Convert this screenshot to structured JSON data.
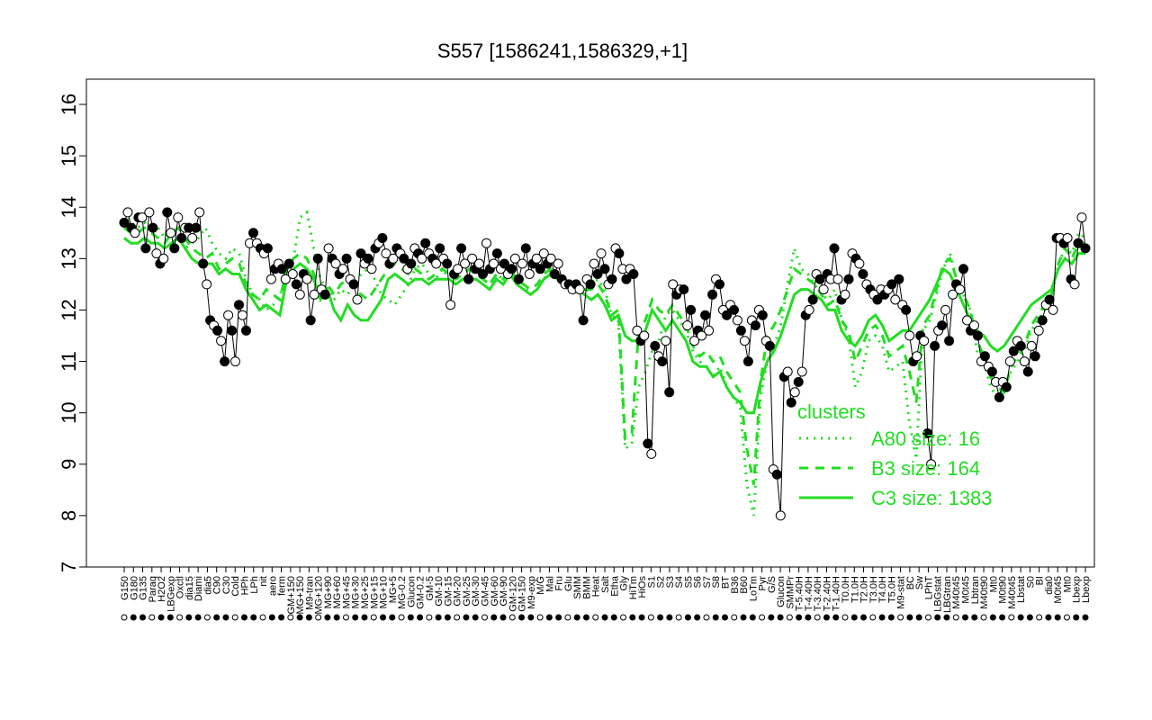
{
  "chart_data": {
    "type": "line",
    "title": "S557 [1586241,1586329,+1]",
    "xlabel": "",
    "ylabel": "",
    "ylim": [
      7,
      16
    ],
    "yticks": [
      7,
      8,
      9,
      10,
      11,
      12,
      13,
      14,
      15,
      16
    ],
    "x_tick_labels": [
      "G150",
      "G180",
      "G135",
      "Paraq",
      "H2O2",
      "LBGexp",
      "Oxctl",
      "dia15",
      "Diami",
      "dia5",
      "C90",
      "C30",
      "Cold",
      "HPh",
      "LPh",
      "nit",
      "aero",
      "ferm",
      "GM+150",
      "MG+150",
      "M9-tran",
      "MG+120",
      "MG+90",
      "MG+60",
      "MG+45",
      "MG+30",
      "MG+25",
      "MG+15",
      "MG+10",
      "MG+5",
      "MG-0.2",
      "Glucon",
      "GM-0.2",
      "GM-5",
      "GM-10",
      "GM-15",
      "GM-20",
      "GM-25",
      "GM-30",
      "GM-45",
      "GM-60",
      "GM-90",
      "GM-120",
      "GM-150",
      "M9-exp",
      "M/G",
      "Mal",
      "Fru",
      "Glu",
      "SMM",
      "BMM",
      "Heat",
      "Salt",
      "Etha",
      "Gly",
      "HiTm",
      "HiOs",
      "S1",
      "S2",
      "S3",
      "S4",
      "S5",
      "S6",
      "S7",
      "S8",
      "BT",
      "B36",
      "B60",
      "LoTm",
      "Pyr",
      "G/S",
      "Glucon",
      "SMMPr",
      "T-5.40H",
      "T-4.40H",
      "T-3.40H",
      "T-2.40H",
      "T-1.40H",
      "T0.0H",
      "T1.0H",
      "T2.0H",
      "T3.0H",
      "T4.0H",
      "T5.0H",
      "M9-stat",
      "BC",
      "Sw",
      "LPhT",
      "LBGstat",
      "LBGtran",
      "M40t45",
      "M0t45",
      "Lbtran",
      "M40t90",
      "Mt0",
      "M0t90",
      "M40t45",
      "Lbstat",
      "S0",
      "BI",
      "dia0",
      "M0t45",
      "Mt0",
      "Lbexp",
      "Lbexp"
    ],
    "legend": {
      "title": "clusters",
      "placement": "right",
      "entries": [
        {
          "label": "A80 size: 16",
          "style": "dotted",
          "color": "#22dd22"
        },
        {
          "label": "B3 size: 164",
          "style": "dashed",
          "color": "#22dd22"
        },
        {
          "label": "C3 size: 1383",
          "style": "solid",
          "color": "#22dd22"
        }
      ]
    },
    "points_series": {
      "name": "",
      "color": "#000000",
      "y": [
        13.7,
        13.9,
        13.6,
        13.5,
        13.8,
        13.8,
        13.2,
        13.9,
        13.6,
        13.1,
        12.9,
        13.0,
        13.9,
        13.5,
        13.2,
        13.8,
        13.4,
        13.6,
        13.6,
        13.4,
        13.6,
        13.9,
        12.9,
        12.5,
        11.8,
        11.7,
        11.6,
        11.4,
        11.0,
        11.9,
        11.6,
        11.0,
        12.1,
        11.9,
        11.6,
        13.3,
        13.5,
        13.3,
        13.2,
        13.1,
        13.2,
        12.6,
        12.8,
        12.9,
        12.8,
        12.6,
        12.9,
        12.7,
        12.5,
        12.3,
        12.7,
        12.6,
        11.8,
        12.3,
        13.0,
        12.4,
        12.3,
        13.2,
        13.0,
        12.9,
        12.7,
        12.8,
        13.0,
        12.6,
        12.5,
        12.2,
        13.1,
        12.9,
        13.0,
        12.8,
        13.2,
        13.3,
        13.4,
        13.1,
        12.9,
        13.0,
        13.2,
        13.1,
        13.0,
        12.8,
        12.9,
        13.2,
        13.1,
        13.0,
        13.3,
        13.1,
        13.0,
        12.9,
        13.2,
        13.0,
        12.9,
        12.1,
        12.7,
        12.8,
        13.2,
        12.9,
        12.6,
        13.0,
        12.8,
        12.9,
        12.7,
        13.3,
        12.8,
        12.9,
        13.1,
        12.8,
        12.9,
        12.7,
        12.8,
        13.0,
        12.6,
        12.9,
        13.2,
        12.7,
        12.9,
        13.0,
        12.8,
        13.1,
        12.9,
        13.0,
        12.7,
        12.9,
        12.6,
        12.5,
        12.5,
        12.4,
        12.5,
        12.4,
        11.8,
        12.6,
        12.5,
        12.9,
        12.7,
        13.1,
        12.8,
        12.5,
        12.6,
        13.2,
        13.1,
        12.8,
        12.6,
        12.8,
        12.7,
        11.6,
        11.4,
        11.5,
        9.4,
        9.2,
        11.3,
        11.1,
        11.0,
        11.4,
        10.4,
        12.5,
        12.3,
        12.4,
        12.4,
        11.7,
        12.0,
        11.4,
        11.6,
        11.5,
        11.9,
        11.6,
        12.3,
        12.6,
        12.5,
        12.0,
        11.9,
        12.1,
        12.0,
        11.8,
        11.6,
        11.4,
        11.0,
        11.8,
        11.7,
        12.0,
        11.9,
        11.4,
        11.3,
        8.9,
        8.8,
        8.0,
        10.7,
        10.8,
        10.2,
        10.4,
        10.6,
        10.8,
        11.9,
        12.0,
        12.2,
        12.7,
        12.6,
        12.4,
        12.7,
        12.6,
        13.2,
        12.6,
        12.2,
        12.3,
        12.6,
        13.1,
        13.0,
        12.9,
        12.7,
        12.5,
        12.4,
        12.3,
        12.2,
        12.4,
        12.3,
        12.4,
        12.5,
        12.2,
        12.6,
        12.1,
        12.0,
        11.5,
        11.0,
        11.1,
        11.5,
        11.4,
        9.6,
        9.0,
        11.3,
        11.6,
        11.7,
        12.0,
        11.4,
        12.3,
        12.5,
        12.4,
        12.8,
        11.8,
        11.6,
        11.7,
        11.5,
        11.0,
        11.1,
        10.9,
        10.8,
        10.6,
        10.3,
        10.6,
        10.5,
        11.0,
        11.2,
        11.4,
        11.3,
        11.0,
        10.8,
        11.3,
        11.1,
        11.6,
        11.8,
        12.1,
        12.2,
        12.0,
        13.4,
        13.4,
        13.3,
        13.4,
        12.6,
        12.5,
        13.3,
        13.8,
        13.2
      ]
    },
    "cluster_series": [
      {
        "name": "A80",
        "style": "dotted",
        "y": [
          13.9,
          13.7,
          13.6,
          13.7,
          13.5,
          13.6,
          13.4,
          13.6,
          13.4,
          13.2,
          13.3,
          13.4,
          13.6,
          13.3,
          13.1,
          13.0,
          13.2,
          13.1,
          12.6,
          12.3,
          12.2,
          12.0,
          12.1,
          12.3,
          12.6,
          13.0,
          13.8,
          13.9,
          13.2,
          12.6,
          12.4,
          12.2,
          12.4,
          12.3,
          12.5,
          12.7,
          12.8,
          12.6,
          12.3,
          12.2,
          12.1,
          12.3,
          12.5,
          12.8,
          12.9,
          12.7,
          12.6,
          12.8,
          12.6,
          12.5,
          12.6,
          12.7,
          12.8,
          12.6,
          12.5,
          12.7,
          12.6,
          12.8,
          12.6,
          12.5,
          12.3,
          12.4,
          12.6,
          12.8,
          12.7,
          12.5,
          12.6,
          12.4,
          12.3,
          12.5,
          12.6,
          12.4,
          11.9,
          11.8,
          9.3,
          9.4,
          10.5,
          10.8,
          11.2,
          11.4,
          11.9,
          12.0,
          11.8,
          11.6,
          11.2,
          11.0,
          10.9,
          10.7,
          10.9,
          10.5,
          10.3,
          10.1,
          8.6,
          8.0,
          10.3,
          11.0,
          11.3,
          11.7,
          12.5,
          13.2,
          12.8,
          12.7,
          12.5,
          12.3,
          12.2,
          12.4,
          11.8,
          11.5,
          10.5,
          10.8,
          11.4,
          11.5,
          11.3,
          10.8,
          10.9,
          11.0,
          9.8,
          9.1,
          11.6,
          11.8,
          12.3,
          12.8,
          13.1,
          12.6,
          12.3,
          12.0,
          11.2,
          11.0,
          10.5,
          10.3,
          10.5,
          10.8,
          11.0,
          11.2,
          11.6,
          11.8,
          12.0,
          12.2,
          12.9,
          13.2,
          13.1,
          13.5,
          13.4
        ]
      },
      {
        "name": "B3",
        "style": "dashed",
        "y": [
          13.6,
          13.5,
          13.5,
          13.6,
          13.5,
          13.4,
          13.3,
          13.5,
          13.6,
          13.4,
          13.2,
          13.1,
          13.0,
          13.1,
          12.8,
          12.9,
          13.0,
          12.9,
          12.5,
          12.3,
          12.2,
          12.4,
          12.3,
          12.2,
          12.8,
          13.0,
          13.1,
          13.0,
          12.7,
          12.4,
          12.5,
          12.3,
          12.5,
          12.6,
          12.4,
          12.3,
          12.2,
          12.4,
          12.6,
          12.8,
          12.9,
          12.8,
          12.7,
          12.8,
          12.7,
          12.6,
          12.7,
          12.8,
          12.7,
          12.6,
          12.7,
          12.8,
          12.7,
          12.6,
          12.5,
          12.7,
          12.6,
          12.8,
          12.6,
          12.5,
          12.4,
          12.5,
          12.7,
          12.8,
          12.7,
          12.6,
          12.5,
          12.5,
          12.4,
          12.4,
          12.5,
          12.3,
          11.9,
          12.0,
          9.5,
          9.6,
          11.6,
          11.8,
          12.2,
          12.0,
          11.9,
          12.1,
          11.9,
          11.7,
          11.3,
          11.1,
          11.2,
          11.0,
          11.1,
          10.8,
          10.6,
          10.4,
          9.3,
          8.6,
          10.6,
          11.5,
          11.7,
          12.0,
          12.4,
          12.8,
          12.7,
          12.6,
          12.5,
          12.3,
          12.1,
          12.2,
          11.8,
          11.6,
          11.0,
          11.3,
          11.6,
          11.7,
          11.5,
          11.1,
          11.2,
          11.3,
          10.8,
          10.2,
          11.7,
          11.9,
          12.4,
          12.9,
          13.0,
          12.6,
          12.3,
          12.0,
          11.4,
          11.1,
          10.7,
          10.5,
          10.4,
          10.9,
          11.1,
          11.3,
          11.7,
          11.9,
          12.1,
          12.3,
          12.9,
          13.2,
          13.0,
          13.3,
          13.3
        ]
      },
      {
        "name": "C3",
        "style": "solid",
        "y": [
          13.4,
          13.3,
          13.3,
          13.4,
          13.3,
          13.3,
          13.2,
          13.3,
          13.4,
          13.2,
          13.0,
          12.9,
          12.9,
          12.9,
          12.7,
          12.8,
          12.7,
          12.7,
          12.4,
          12.2,
          12.0,
          12.1,
          12.0,
          11.9,
          12.6,
          12.8,
          12.9,
          12.8,
          12.6,
          12.2,
          12.4,
          12.0,
          11.8,
          12.1,
          11.9,
          11.8,
          11.8,
          12.0,
          12.2,
          12.6,
          12.7,
          12.6,
          12.5,
          12.6,
          12.6,
          12.5,
          12.6,
          12.6,
          12.6,
          12.5,
          12.6,
          12.6,
          12.6,
          12.5,
          12.4,
          12.6,
          12.5,
          12.7,
          12.5,
          12.4,
          12.3,
          12.4,
          12.6,
          12.7,
          12.6,
          12.5,
          12.4,
          12.4,
          12.3,
          12.2,
          12.3,
          12.1,
          11.8,
          11.9,
          11.5,
          11.4,
          11.4,
          11.6,
          12.0,
          11.8,
          11.6,
          11.8,
          11.6,
          11.4,
          11.0,
          10.9,
          10.9,
          10.7,
          10.8,
          10.5,
          10.3,
          10.2,
          10.0,
          10.0,
          10.6,
          11.0,
          11.2,
          11.5,
          11.9,
          12.3,
          12.4,
          12.4,
          12.3,
          12.2,
          12.0,
          12.0,
          11.6,
          11.4,
          11.3,
          11.5,
          11.8,
          11.9,
          11.7,
          11.4,
          11.5,
          11.6,
          11.6,
          11.8,
          12.0,
          12.2,
          12.5,
          12.8,
          12.7,
          12.4,
          12.1,
          11.8,
          11.6,
          11.5,
          11.3,
          11.2,
          11.3,
          11.5,
          11.7,
          11.9,
          12.1,
          12.2,
          12.3,
          12.4,
          12.8,
          13.0,
          12.9,
          13.1,
          13.1
        ]
      }
    ]
  }
}
